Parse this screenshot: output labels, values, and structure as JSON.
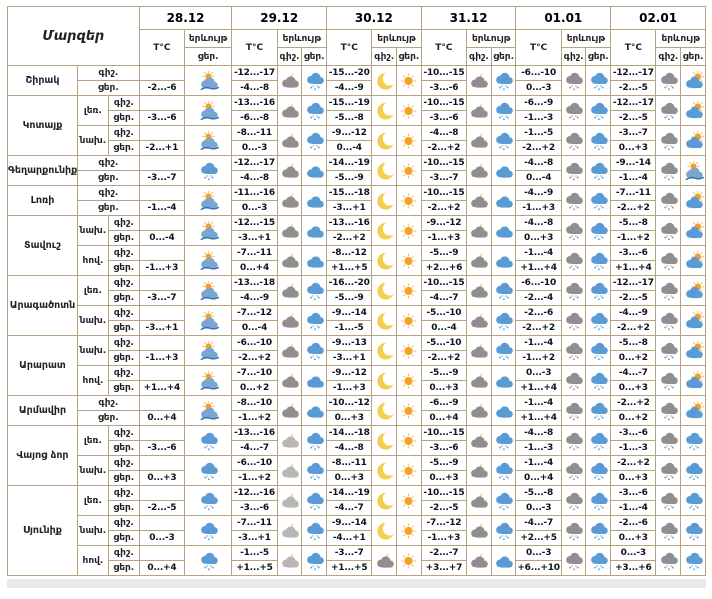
{
  "table": {
    "corner_label": "Մարզեր",
    "labels": {
      "temp": "T°C",
      "phenomenon": "երևույթ",
      "night": "գիշ.",
      "day": "ցեր."
    },
    "dates": [
      {
        "label": "28.12",
        "icon_cols": [
          "day"
        ]
      },
      {
        "label": "29.12",
        "icon_cols": [
          "night",
          "day"
        ]
      },
      {
        "label": "30.12",
        "icon_cols": [
          "night",
          "day"
        ]
      },
      {
        "label": "31.12",
        "icon_cols": [
          "night",
          "day"
        ]
      },
      {
        "label": "01.01",
        "icon_cols": [
          "night",
          "day"
        ]
      },
      {
        "label": "02.01",
        "icon_cols": [
          "night",
          "day"
        ]
      }
    ],
    "regions": [
      {
        "name": "Շիրակ",
        "blocks": [
          {
            "zone": null,
            "night": [
              "",
              "-12...-17",
              "-15...-20",
              "-10...-15",
              "-6...-10",
              "-12...-17"
            ],
            "day": [
              "-2...-6",
              "-4...-8",
              "-4...-9",
              "-3...-6",
              "0...-3",
              "-2...-5"
            ],
            "icons": [
              [
                "sun-over-cloud"
              ],
              [
                "cloud-moon",
                "snow-cloud-blue"
              ],
              [
                "moon",
                "sun"
              ],
              [
                "cloud-moon",
                "snow-cloud-blue"
              ],
              [
                "snow-cloud-gray",
                "snow-cloud-blue"
              ],
              [
                "snow-cloud-gray",
                "sun-behind-cloud"
              ]
            ]
          }
        ]
      },
      {
        "name": "Կոտայք",
        "blocks": [
          {
            "zone": "լեռ.",
            "night": [
              "",
              "-13...-16",
              "-15...-19",
              "-10...-15",
              "-6...-9",
              "-12...-17"
            ],
            "day": [
              "-3...-6",
              "-6...-8",
              "-5...-8",
              "-3...-6",
              "-1...-3",
              "-2...-5"
            ],
            "icons": [
              [
                "sun-over-cloud"
              ],
              [
                "cloud-moon",
                "snow-cloud-blue"
              ],
              [
                "moon",
                "sun"
              ],
              [
                "cloud-moon",
                "snow-cloud-blue"
              ],
              [
                "snow-cloud-gray",
                "snow-cloud-blue"
              ],
              [
                "snow-cloud-gray",
                "sun-behind-cloud"
              ]
            ]
          },
          {
            "zone": "նախ.",
            "night": [
              "",
              "-8...-11",
              "-9...-12",
              "-4...-8",
              "-1...-5",
              "-3...-7"
            ],
            "day": [
              "-2...+1",
              "0...-3",
              "0...-4",
              "-2...+2",
              "-2...+2",
              "0...+3"
            ],
            "icons": [
              [
                "sun-over-cloud"
              ],
              [
                "cloud-moon",
                "snow-cloud-blue"
              ],
              [
                "moon",
                "sun"
              ],
              [
                "cloud-moon",
                "snow-cloud-blue"
              ],
              [
                "snow-cloud-gray",
                "snow-cloud-blue"
              ],
              [
                "snow-cloud-gray",
                "sun-behind-cloud"
              ]
            ]
          }
        ]
      },
      {
        "name": "Գեղարքունիք",
        "blocks": [
          {
            "zone": null,
            "night": [
              "",
              "-12...-17",
              "-14...-19",
              "-10...-15",
              "-4...-8",
              "-9...-14"
            ],
            "day": [
              "-3...-7",
              "-4...-8",
              "-5...-9",
              "-3...-7",
              "0...-4",
              "-1...-4"
            ],
            "icons": [
              [
                "snow-cloud-blue"
              ],
              [
                "cloud-moon",
                "cloud"
              ],
              [
                "moon",
                "sun"
              ],
              [
                "cloud-moon",
                "cloud"
              ],
              [
                "snow-cloud-gray",
                "snow-cloud-blue"
              ],
              [
                "snow-cloud-gray",
                "sun-over-cloud"
              ]
            ]
          }
        ]
      },
      {
        "name": "Լոռի",
        "blocks": [
          {
            "zone": null,
            "night": [
              "",
              "-11...-16",
              "-15...-18",
              "-10...-15",
              "-4...-9",
              "-7...-11"
            ],
            "day": [
              "-1...-4",
              "0...-3",
              "-3...+1",
              "-2...+2",
              "-1...+3",
              "-2...+2"
            ],
            "icons": [
              [
                "sun-over-cloud"
              ],
              [
                "cloud-moon",
                "cloud"
              ],
              [
                "moon",
                "sun"
              ],
              [
                "cloud-moon",
                "cloud"
              ],
              [
                "snow-cloud-gray",
                "snow-cloud-blue"
              ],
              [
                "snow-cloud-gray",
                "sun-behind-cloud"
              ]
            ]
          }
        ]
      },
      {
        "name": "Տավուշ",
        "blocks": [
          {
            "zone": "նախ.",
            "night": [
              "",
              "-12...-15",
              "-13...-16",
              "-9...-12",
              "-4...-8",
              "-5...-8"
            ],
            "day": [
              "0...-4",
              "-3...+1",
              "-2...+2",
              "-1...+3",
              "0...+3",
              "-1...+2"
            ],
            "icons": [
              [
                "sun-over-cloud"
              ],
              [
                "cloud-moon",
                "cloud"
              ],
              [
                "moon",
                "sun"
              ],
              [
                "cloud-moon",
                "cloud"
              ],
              [
                "snow-cloud-gray",
                "snow-cloud-blue"
              ],
              [
                "snow-cloud-gray",
                "sun-behind-cloud"
              ]
            ]
          },
          {
            "zone": "հով.",
            "night": [
              "",
              "-7...-11",
              "-8...-12",
              "-5...-9",
              "-1...-4",
              "-3...-6"
            ],
            "day": [
              "-1...+3",
              "0...+4",
              "+1...+5",
              "+2...+6",
              "+1...+4",
              "+1...+4"
            ],
            "icons": [
              [
                "sun-over-cloud"
              ],
              [
                "cloud-moon",
                "cloud"
              ],
              [
                "moon",
                "sun"
              ],
              [
                "cloud-moon",
                "cloud"
              ],
              [
                "snow-cloud-gray",
                "snow-cloud-blue"
              ],
              [
                "snow-cloud-gray",
                "sun-behind-cloud"
              ]
            ]
          }
        ]
      },
      {
        "name": "Արագածոտն",
        "blocks": [
          {
            "zone": "լեռ.",
            "night": [
              "",
              "-13...-18",
              "-16...-20",
              "-10...-15",
              "-6...-10",
              "-12...-17"
            ],
            "day": [
              "-3...-7",
              "-4...-9",
              "-5...-9",
              "-4...-7",
              "-2...-4",
              "-2...-5"
            ],
            "icons": [
              [
                "sun-over-cloud"
              ],
              [
                "cloud-moon",
                "snow-cloud-blue"
              ],
              [
                "moon",
                "sun"
              ],
              [
                "cloud-moon",
                "snow-cloud-blue"
              ],
              [
                "snow-cloud-gray",
                "snow-cloud-blue"
              ],
              [
                "snow-cloud-gray",
                "sun-behind-cloud"
              ]
            ]
          },
          {
            "zone": "նախ.",
            "night": [
              "",
              "-7...-12",
              "-9...-14",
              "-5...-10",
              "-2...-6",
              "-4...-9"
            ],
            "day": [
              "-3...+1",
              "0...-4",
              "-1...-5",
              "0...-4",
              "-2...+2",
              "-2...+2"
            ],
            "icons": [
              [
                "sun-over-cloud"
              ],
              [
                "cloud-moon",
                "snow-cloud-blue"
              ],
              [
                "moon",
                "sun"
              ],
              [
                "cloud-moon",
                "snow-cloud-blue"
              ],
              [
                "snow-cloud-gray",
                "snow-cloud-blue"
              ],
              [
                "snow-cloud-gray",
                "sun-behind-cloud"
              ]
            ]
          }
        ]
      },
      {
        "name": "Արարատ",
        "blocks": [
          {
            "zone": "նախ.",
            "night": [
              "",
              "-6...-10",
              "-9...-13",
              "-5...-10",
              "-1...-4",
              "-5...-8"
            ],
            "day": [
              "-1...+3",
              "-2...+2",
              "-3...+1",
              "-2...+2",
              "-1...+2",
              "0...+2"
            ],
            "icons": [
              [
                "sun-over-cloud"
              ],
              [
                "cloud-moon",
                "snow-cloud-blue"
              ],
              [
                "moon",
                "sun"
              ],
              [
                "cloud-moon",
                "snow-cloud-blue"
              ],
              [
                "snow-cloud-gray",
                "snow-cloud-blue"
              ],
              [
                "snow-cloud-gray",
                "sun-behind-cloud"
              ]
            ]
          },
          {
            "zone": "հով.",
            "night": [
              "",
              "-7...-10",
              "-9...-12",
              "-5...-9",
              "0...-3",
              "-4...-7"
            ],
            "day": [
              "+1...+4",
              "0...+2",
              "-1...+3",
              "0...+3",
              "+1...+4",
              "0...+3"
            ],
            "icons": [
              [
                "sun-over-cloud"
              ],
              [
                "cloud-moon",
                "cloud"
              ],
              [
                "moon",
                "sun"
              ],
              [
                "cloud-moon",
                "cloud"
              ],
              [
                "snow-cloud-gray",
                "snow-cloud-blue"
              ],
              [
                "snow-cloud-gray",
                "sun-behind-cloud"
              ]
            ]
          }
        ]
      },
      {
        "name": "Արմավիր",
        "blocks": [
          {
            "zone": null,
            "night": [
              "",
              "-8...-10",
              "-10...-12",
              "-6...-9",
              "-1...-4",
              "-2...+2"
            ],
            "day": [
              "0...+4",
              "-1...+2",
              "0...+3",
              "0...+4",
              "+1...+4",
              "0...+2"
            ],
            "icons": [
              [
                "sun-over-cloud"
              ],
              [
                "cloud-moon",
                "cloud"
              ],
              [
                "moon",
                "sun"
              ],
              [
                "cloud-moon",
                "cloud"
              ],
              [
                "snow-cloud-gray",
                "snow-cloud-blue"
              ],
              [
                "snow-cloud-gray",
                "sun-behind-cloud"
              ]
            ]
          }
        ]
      },
      {
        "name": "Վայոց ձոր",
        "blocks": [
          {
            "zone": "լեռ.",
            "night": [
              "",
              "-13...-16",
              "-14...-18",
              "-10...-15",
              "-4...-8",
              "-3...-6"
            ],
            "day": [
              "-3...-6",
              "-4...-7",
              "-4...-8",
              "-3...-6",
              "-1...-3",
              "-1...-3"
            ],
            "icons": [
              [
                "snow-cloud-blue"
              ],
              [
                "cloud-moon-light",
                "snow-cloud-blue"
              ],
              [
                "moon",
                "sun"
              ],
              [
                "cloud-moon",
                "snow-cloud-blue"
              ],
              [
                "snow-cloud-gray",
                "snow-cloud-blue"
              ],
              [
                "snow-cloud-gray",
                "snow-cloud-blue"
              ]
            ]
          },
          {
            "zone": "նախ.",
            "night": [
              "",
              "-6...-10",
              "-8...-11",
              "-5...-9",
              "-1...-4",
              "-2...+2"
            ],
            "day": [
              "0...+3",
              "-1...+2",
              "0...+3",
              "0...+3",
              "0...+4",
              "0...+3"
            ],
            "icons": [
              [
                "snow-cloud-blue"
              ],
              [
                "cloud-moon-light",
                "snow-cloud-blue"
              ],
              [
                "moon",
                "sun"
              ],
              [
                "cloud-moon",
                "snow-cloud-blue"
              ],
              [
                "snow-cloud-gray",
                "snow-cloud-blue"
              ],
              [
                "snow-cloud-gray",
                "snow-cloud-blue"
              ]
            ]
          }
        ]
      },
      {
        "name": "Սյունիք",
        "blocks": [
          {
            "zone": "լեռ.",
            "night": [
              "",
              "-12...-16",
              "-14...-19",
              "-10...-15",
              "-5...-8",
              "-3...-6"
            ],
            "day": [
              "-2...-5",
              "-3...-6",
              "-4...-7",
              "-2...-5",
              "0...-3",
              "-1...-4"
            ],
            "icons": [
              [
                "snow-cloud-blue"
              ],
              [
                "cloud-moon-light",
                "snow-cloud-blue"
              ],
              [
                "moon",
                "sun"
              ],
              [
                "cloud-moon",
                "snow-cloud-blue"
              ],
              [
                "snow-cloud-gray",
                "snow-cloud-blue"
              ],
              [
                "snow-cloud-gray",
                "snow-cloud-blue"
              ]
            ]
          },
          {
            "zone": "նախ.",
            "night": [
              "",
              "-7...-11",
              "-9...-14",
              "-7...-12",
              "-4...-7",
              "-2...-6"
            ],
            "day": [
              "0...-3",
              "-3...+1",
              "-4...+1",
              "-1...+3",
              "+2...+5",
              "0...+3"
            ],
            "icons": [
              [
                "snow-cloud-blue"
              ],
              [
                "cloud-moon-light",
                "snow-cloud-blue"
              ],
              [
                "moon",
                "sun"
              ],
              [
                "cloud-moon",
                "snow-cloud-blue"
              ],
              [
                "snow-cloud-gray",
                "snow-cloud-blue"
              ],
              [
                "snow-cloud-gray",
                "snow-cloud-blue"
              ]
            ]
          },
          {
            "zone": "հով.",
            "night": [
              "",
              "-1...-5",
              "-3...-7",
              "-2...-7",
              "0...-3",
              "0...-3"
            ],
            "day": [
              "0...+4",
              "+1...+5",
              "+1...+5",
              "+3...+7",
              "+6...+10",
              "+3...+6"
            ],
            "icons": [
              [
                "snow-cloud-blue"
              ],
              [
                "cloud-moon-light",
                "snow-cloud-blue"
              ],
              [
                "cloud-moon",
                "sun"
              ],
              [
                "cloud-moon",
                "cloud"
              ],
              [
                "snow-cloud-gray",
                "snow-cloud-blue"
              ],
              [
                "snow-cloud-gray",
                "snow-cloud-blue"
              ]
            ]
          }
        ]
      }
    ],
    "colors": {
      "border": "#b5a383",
      "cloud_blue": "#5b9bd5",
      "cloud_gray": "#8f8f8f",
      "cloud_gray_light": "#b7b7b7",
      "sun": "#f5a028",
      "moon": "#f4ce4e"
    }
  }
}
